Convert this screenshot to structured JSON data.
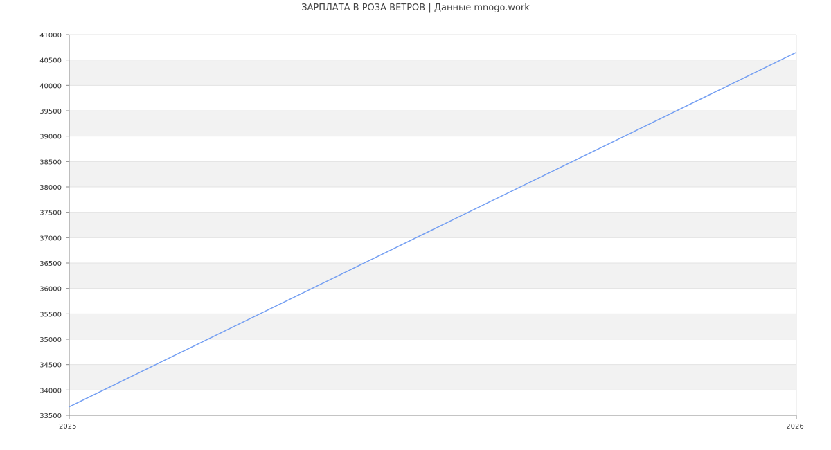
{
  "chart_data": {
    "type": "line",
    "title": "ЗАРПЛАТА В РОЗА ВЕТРОВ | Данные mnogo.work",
    "x": [
      "2025",
      "2026"
    ],
    "series": [
      {
        "values": [
          33670,
          40650
        ],
        "color": "#739ef2"
      }
    ],
    "ylim": [
      33500,
      41000
    ],
    "ytick_step": 500,
    "xlabel": "",
    "ylabel": "",
    "grid": true,
    "band_color": "#f2f2f2",
    "legend": "none"
  }
}
